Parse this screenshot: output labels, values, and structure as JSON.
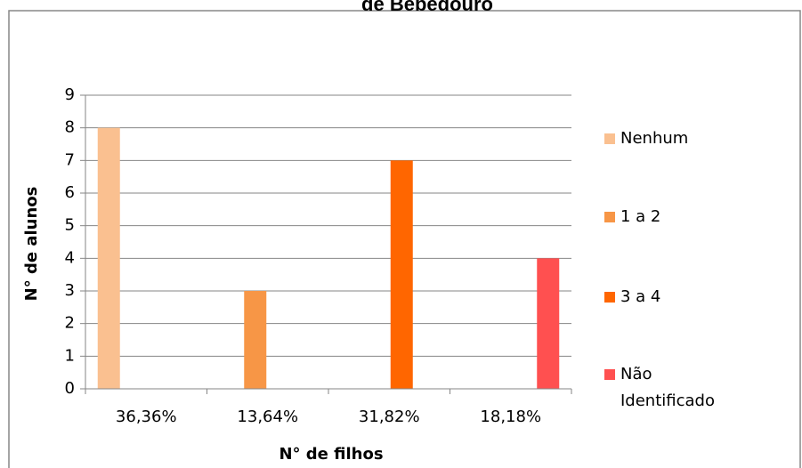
{
  "chart_data": {
    "type": "bar",
    "title": "de Bebedouro",
    "xlabel": "N° de filhos",
    "ylabel": "N° de alunos",
    "ylim": [
      0,
      9
    ],
    "yticks": [
      "0",
      "1",
      "2",
      "3",
      "4",
      "5",
      "6",
      "7",
      "8",
      "9"
    ],
    "categories": [
      "36,36%",
      "13,64%",
      "31,82%",
      "18,18%"
    ],
    "series": [
      {
        "name": "Nenhum",
        "color": "#FAC090",
        "values": [
          8,
          null,
          null,
          null
        ]
      },
      {
        "name": "1 a 2",
        "color": "#F79646",
        "values": [
          null,
          3,
          null,
          null
        ]
      },
      {
        "name": "3 a 4",
        "color": "#FF6600",
        "values": [
          null,
          null,
          7,
          null
        ]
      },
      {
        "name": "Não Identificado",
        "color": "#FF5050",
        "values": [
          null,
          null,
          null,
          4
        ]
      }
    ],
    "grid": true,
    "legend": "right"
  }
}
